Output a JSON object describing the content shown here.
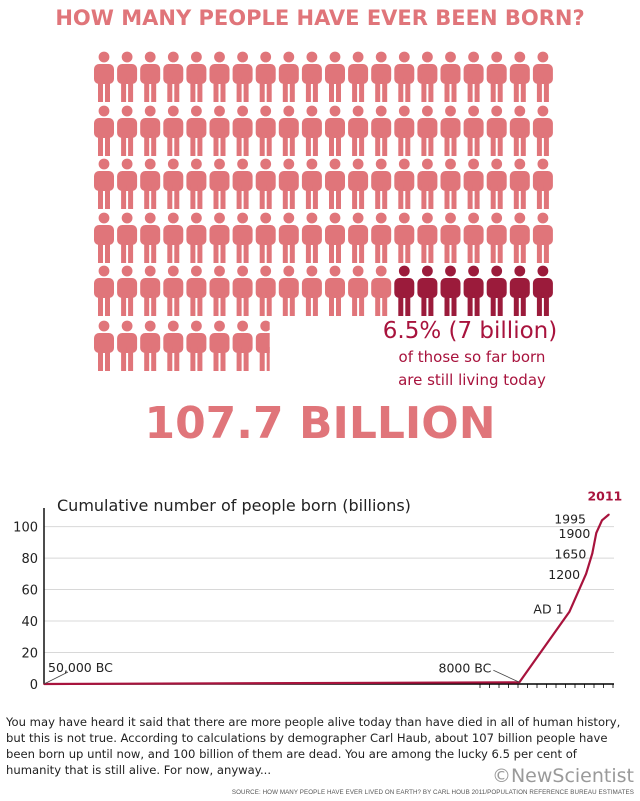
{
  "colors": {
    "people_dead": "#e0757a",
    "people_living": "#9b1b3b",
    "title": "#e0757a",
    "living_text": "#a8133d",
    "line": "#a8133d",
    "grid": "#d8d8d8",
    "axis": "#000000"
  },
  "icons": {
    "person": "person-icon"
  },
  "infographic": {
    "title": "HOW MANY PEOPLE HAVE EVER BEEN BORN?",
    "living_percent": "6.5% (7 billion)",
    "living_line1": "of those so far born",
    "living_line2": "are still living today",
    "total": "107.7 BILLION",
    "people_rows_full": 5,
    "people_per_row": 20,
    "living_people_count": 7,
    "partial_row_full": 7,
    "partial_row_last_fraction": 0.7
  },
  "chart_data": {
    "type": "line",
    "title": "Cumulative number of people born (billions)",
    "ylim": [
      0,
      108
    ],
    "yticks": [
      0,
      20,
      40,
      60,
      80,
      100
    ],
    "grid": true,
    "x": [
      "50,000 BC",
      "8000 BC",
      "AD 1",
      "1200",
      "1650",
      "1900",
      "1995",
      "2011"
    ],
    "values": [
      0,
      1.1,
      46,
      70,
      83,
      96,
      104,
      107.7
    ],
    "annotations": [
      "50,000 BC",
      "8000 BC",
      "AD 1",
      "1200",
      "1650",
      "1900",
      "1995",
      "2011"
    ]
  },
  "text": {
    "lines": [
      "You may have heard it said that there are more people alive today than have died in all of human history,",
      "but this is not true. According to calculations by demographer Carl Haub, about 107 billion people have",
      "been born up until now, and 100 billion of them are dead. You are among the lucky 6.5 per cent of",
      "humanity that is still alive. For now, anyway..."
    ]
  },
  "brand": "©NewScientist",
  "source": "SOURCE: HOW MANY PEOPLE HAVE EVER LIVED ON EARTH? BY CARL HOUB 2011/POPULATION REFERENCE BUREAU ESTIMATES"
}
